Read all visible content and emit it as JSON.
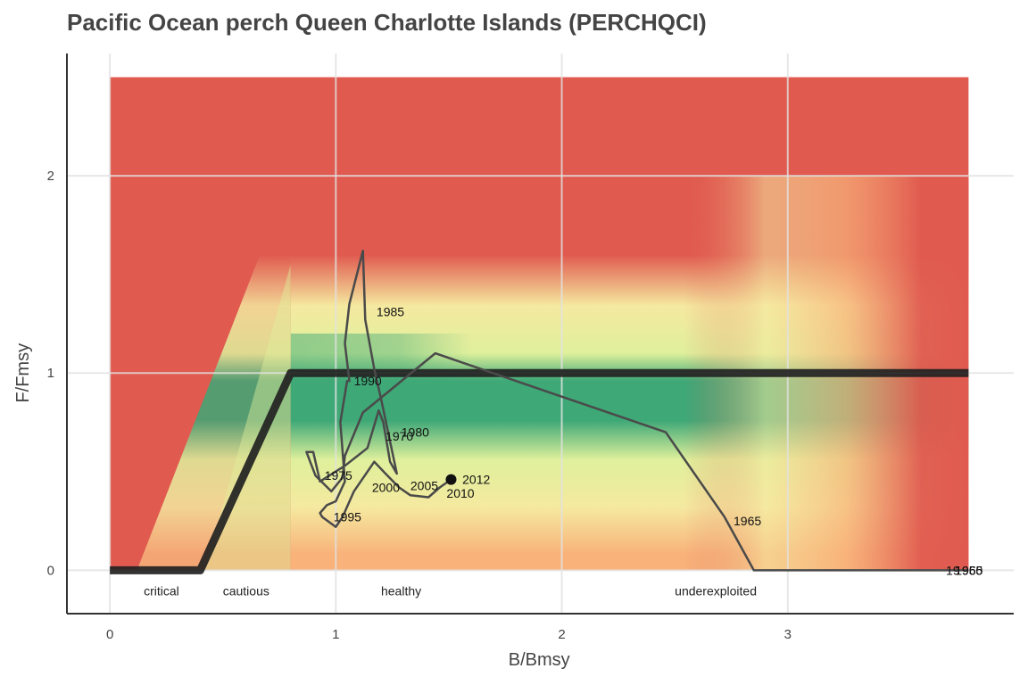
{
  "chart_data": {
    "type": "line",
    "title": "Pacific Ocean perch Queen Charlotte Islands (PERCHQCI)",
    "xlabel": "B/Bmsy",
    "ylabel": "F/Fmsy",
    "xlim": [
      -0.19,
      4.0
    ],
    "ylim": [
      -0.22,
      2.62
    ],
    "xticks": [
      0,
      1,
      2,
      3
    ],
    "yticks": [
      0,
      1,
      2
    ],
    "grid": true,
    "background_extent": {
      "x": [
        0,
        3.8
      ],
      "y": [
        0,
        2.5
      ]
    },
    "colors": {
      "overfished_red": "#e05a4f",
      "green": "#3ea877",
      "light_green": "#dff09c",
      "yellow": "#f5e9a0",
      "orange": "#f8b27a",
      "reference_line": "#222222",
      "trajectory": "#4a4a4a",
      "grid": "#e2e2e2",
      "axis": "#333333"
    },
    "reference_line": {
      "x": [
        0,
        0.4,
        0.8,
        3.8
      ],
      "y": [
        0,
        0,
        1,
        1
      ]
    },
    "zones": [
      {
        "label": "critical",
        "x": 0.15
      },
      {
        "label": "cautious",
        "x": 0.5
      },
      {
        "label": "healthy",
        "x": 1.2
      },
      {
        "label": "underexploited",
        "x": 2.5
      }
    ],
    "series": [
      {
        "points": [
          [
            3.8,
            0.0
          ],
          [
            3.65,
            0.0
          ],
          [
            2.85,
            0.0
          ],
          [
            2.72,
            0.27
          ],
          [
            2.46,
            0.7
          ],
          [
            1.44,
            1.1
          ],
          [
            1.12,
            0.8
          ],
          [
            1.04,
            0.58
          ],
          [
            1.03,
            0.47
          ],
          [
            0.98,
            0.4
          ],
          [
            0.91,
            0.48
          ],
          [
            0.87,
            0.6
          ],
          [
            0.9,
            0.6
          ],
          [
            0.93,
            0.45
          ],
          [
            1.04,
            0.53
          ],
          [
            1.14,
            0.62
          ],
          [
            1.19,
            0.81
          ],
          [
            1.21,
            0.75
          ],
          [
            1.24,
            0.55
          ],
          [
            1.27,
            0.49
          ],
          [
            1.2,
            0.87
          ],
          [
            1.17,
            1.02
          ],
          [
            1.13,
            1.27
          ],
          [
            1.12,
            1.62
          ],
          [
            1.06,
            1.35
          ],
          [
            1.04,
            1.15
          ],
          [
            1.06,
            0.96
          ],
          [
            1.05,
            0.96
          ],
          [
            1.03,
            0.82
          ],
          [
            1.02,
            0.75
          ],
          [
            1.04,
            0.45
          ],
          [
            1.0,
            0.35
          ],
          [
            0.96,
            0.33
          ],
          [
            0.93,
            0.29
          ],
          [
            0.94,
            0.27
          ],
          [
            1.0,
            0.22
          ],
          [
            1.03,
            0.27
          ],
          [
            1.08,
            0.4
          ],
          [
            1.17,
            0.55
          ],
          [
            1.22,
            0.49
          ],
          [
            1.28,
            0.42
          ],
          [
            1.33,
            0.38
          ],
          [
            1.41,
            0.37
          ],
          [
            1.46,
            0.42
          ],
          [
            1.51,
            0.46
          ]
        ]
      }
    ],
    "year_labels": [
      {
        "text": "1965",
        "x": 2.76,
        "y": 0.25
      },
      {
        "text": "1970",
        "x": 1.22,
        "y": 0.68
      },
      {
        "text": "1975",
        "x": 0.95,
        "y": 0.48
      },
      {
        "text": "1980",
        "x": 1.29,
        "y": 0.7
      },
      {
        "text": "1985",
        "x": 1.18,
        "y": 1.31
      },
      {
        "text": "1990",
        "x": 1.08,
        "y": 0.96
      },
      {
        "text": "1995",
        "x": 0.99,
        "y": 0.27
      },
      {
        "text": "2000",
        "x": 1.16,
        "y": 0.42
      },
      {
        "text": "2005",
        "x": 1.33,
        "y": 0.43
      },
      {
        "text": "2010",
        "x": 1.49,
        "y": 0.39
      },
      {
        "text": "2012",
        "x": 1.56,
        "y": 0.46
      }
    ],
    "edge_labels": [
      {
        "text": "19",
        "x": 3.7,
        "y": 0.0
      },
      {
        "text": "1955",
        "x": 3.74,
        "y": 0.0
      },
      {
        "text": "1960",
        "x": 3.74,
        "y": 0.0
      },
      {
        "text": "1965",
        "x": 3.74,
        "y": 0.0
      }
    ],
    "current_point": {
      "x": 1.51,
      "y": 0.46
    }
  }
}
